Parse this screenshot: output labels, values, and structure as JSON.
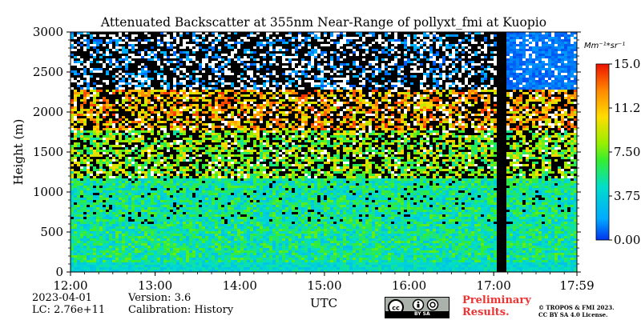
{
  "chart_data": {
    "type": "heatmap",
    "title": "Attenuated Backscatter at 355nm Near-Range of pollyxt_fmi at Kuopio",
    "xlabel": "UTC",
    "ylabel": "Height (m)",
    "x_ticks": [
      "12:00",
      "13:00",
      "14:00",
      "15:00",
      "16:00",
      "17:00",
      "17:59"
    ],
    "x_range_hours": [
      12.0,
      17.983
    ],
    "y_ticks": [
      0,
      500,
      1000,
      1500,
      2000,
      2500,
      3000
    ],
    "ylim": [
      0,
      3000
    ],
    "colorbar": {
      "unit_label": "Mm⁻¹*sr⁻¹",
      "ticks": [
        "15.00",
        "11.25",
        "7.50",
        "3.75",
        "0.00"
      ],
      "tick_values": [
        15.0,
        11.25,
        7.5,
        3.75,
        0.0
      ],
      "range": [
        0,
        15
      ]
    },
    "no_data_gap_utc": [
      "17:03",
      "17:08"
    ],
    "features": [
      {
        "height_range": [
          0,
          150
        ],
        "value": "high, ~3-5 (cyan/green)"
      },
      {
        "height_range": [
          150,
          1200
        ],
        "value": "~3-7 (green)"
      },
      {
        "height_range": [
          1200,
          1800
        ],
        "value": "~6-10 (green/yellow, sparse)"
      },
      {
        "height_range": [
          1800,
          2300
        ],
        "value": "~9-14 (orange/red layer)"
      },
      {
        "height_range": [
          2300,
          3000
        ],
        "value": "mostly noise (black/white), blue after ~17:10"
      }
    ]
  },
  "info": {
    "date": "2023-04-01",
    "version": "Version: 3.6",
    "lc": "LC: 2.76e+11",
    "calibration": "Calibration: History"
  },
  "cc_label": "BY  SA",
  "prelim_line1": "Preliminary",
  "prelim_line2": "Results.",
  "copyright_line1": "© TROPOS & FMI 2023.",
  "copyright_line2": "CC BY SA 4.0 License."
}
